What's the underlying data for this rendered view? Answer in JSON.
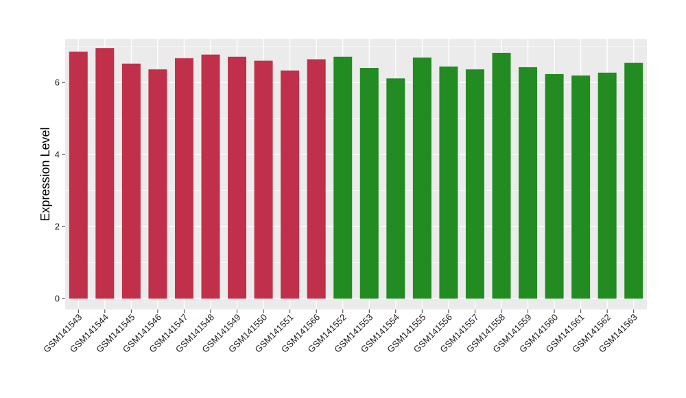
{
  "chart_data": {
    "type": "bar",
    "title": "",
    "xlabel": "",
    "ylabel": "Expression Level",
    "ylim": [
      -0.3,
      7.2
    ],
    "yticks": [
      0,
      2,
      4,
      6
    ],
    "grid": true,
    "legend": "none",
    "panel_background": "#ebebeb",
    "gridline_color": "#ffffff",
    "categories": [
      "GSM141543",
      "GSM141544",
      "GSM141545",
      "GSM141546",
      "GSM141547",
      "GSM141548",
      "GSM141549",
      "GSM141550",
      "GSM141551",
      "GSM141566",
      "GSM141552",
      "GSM141553",
      "GSM141554",
      "GSM141555",
      "GSM141556",
      "GSM141557",
      "GSM141558",
      "GSM141559",
      "GSM141560",
      "GSM141561",
      "GSM141562",
      "GSM141563"
    ],
    "values": [
      6.85,
      6.95,
      6.52,
      6.36,
      6.67,
      6.77,
      6.71,
      6.6,
      6.33,
      6.64,
      6.71,
      6.4,
      6.11,
      6.69,
      6.44,
      6.36,
      6.82,
      6.42,
      6.23,
      6.19,
      6.27,
      6.54
    ],
    "colors": [
      "#c0304a",
      "#c0304a",
      "#c0304a",
      "#c0304a",
      "#c0304a",
      "#c0304a",
      "#c0304a",
      "#c0304a",
      "#c0304a",
      "#c0304a",
      "#228b22",
      "#228b22",
      "#228b22",
      "#228b22",
      "#228b22",
      "#228b22",
      "#228b22",
      "#228b22",
      "#228b22",
      "#228b22",
      "#228b22",
      "#228b22"
    ]
  }
}
